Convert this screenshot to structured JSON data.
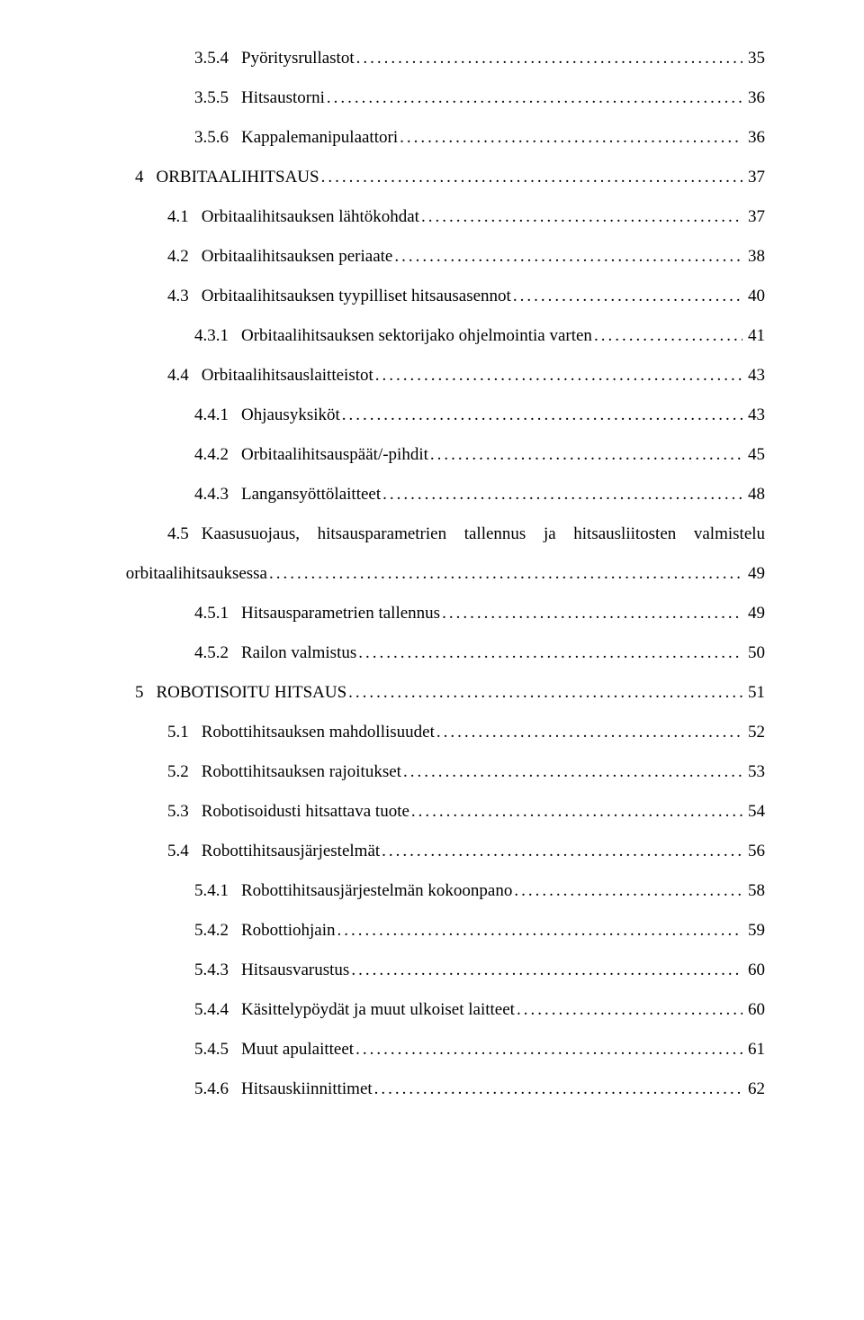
{
  "fontFamily": "Times New Roman",
  "fontSizePt": 14,
  "textColor": "#000000",
  "backgroundColor": "#ffffff",
  "items": [
    {
      "level": 3,
      "num": "3.5.4",
      "title": "Pyöritysrullastot",
      "page": "35"
    },
    {
      "level": 3,
      "num": "3.5.5",
      "title": "Hitsaustorni",
      "page": "36"
    },
    {
      "level": 3,
      "num": "3.5.6",
      "title": "Kappalemanipulaattori",
      "page": "36"
    },
    {
      "level": 0,
      "num": "4",
      "title": "ORBITAALIHITSAUS",
      "page": "37"
    },
    {
      "level": 1,
      "num": "4.1",
      "title": "Orbitaalihitsauksen lähtökohdat",
      "page": "37"
    },
    {
      "level": 1,
      "num": "4.2",
      "title": "Orbitaalihitsauksen periaate",
      "page": "38"
    },
    {
      "level": 1,
      "num": "4.3",
      "title": "Orbitaalihitsauksen tyypilliset hitsausasennot",
      "page": "40"
    },
    {
      "level": 3,
      "num": "4.3.1",
      "title": "Orbitaalihitsauksen sektorijako ohjelmointia varten",
      "page": "41"
    },
    {
      "level": 1,
      "num": "4.4",
      "title": "Orbitaalihitsauslaitteistot",
      "page": "43"
    },
    {
      "level": 3,
      "num": "4.4.1",
      "title": "Ohjausyksiköt",
      "page": "43"
    },
    {
      "level": 3,
      "num": "4.4.2",
      "title": "Orbitaalihitsauspäät/-pihdit",
      "page": "45"
    },
    {
      "level": 3,
      "num": "4.4.3",
      "title": "Langansyöttölaitteet",
      "page": "48"
    },
    {
      "level": 1,
      "num": "4.5",
      "titleWords": [
        "Kaasusuojaus,",
        "hitsausparametrien",
        "tallennus",
        "ja",
        "hitsausliitosten",
        "valmistelu"
      ],
      "title2": "orbitaalihitsauksessa",
      "page": "49",
      "wrap": true
    },
    {
      "level": 3,
      "num": "4.5.1",
      "title": "Hitsausparametrien tallennus",
      "page": "49"
    },
    {
      "level": 3,
      "num": "4.5.2",
      "title": "Railon valmistus",
      "page": "50"
    },
    {
      "level": 0,
      "num": "5",
      "title": "ROBOTISOITU HITSAUS",
      "page": "51"
    },
    {
      "level": 1,
      "num": "5.1",
      "title": "Robottihitsauksen mahdollisuudet",
      "page": "52"
    },
    {
      "level": 1,
      "num": "5.2",
      "title": "Robottihitsauksen rajoitukset",
      "page": "53"
    },
    {
      "level": 1,
      "num": "5.3",
      "title": "Robotisoidusti hitsattava tuote",
      "page": "54"
    },
    {
      "level": 1,
      "num": "5.4",
      "title": "Robottihitsausjärjestelmät",
      "page": "56"
    },
    {
      "level": 3,
      "num": "5.4.1",
      "title": "Robottihitsausjärjestelmän kokoonpano",
      "page": "58"
    },
    {
      "level": 3,
      "num": "5.4.2",
      "title": "Robottiohjain",
      "page": "59"
    },
    {
      "level": 3,
      "num": "5.4.3",
      "title": "Hitsausvarustus",
      "page": "60"
    },
    {
      "level": 3,
      "num": "5.4.4",
      "title": "Käsittelypöydät ja muut ulkoiset laitteet",
      "page": "60"
    },
    {
      "level": 3,
      "num": "5.4.5",
      "title": "Muut apulaitteet",
      "page": "61"
    },
    {
      "level": 3,
      "num": "5.4.6",
      "title": "Hitsauskiinnittimet",
      "page": "62"
    }
  ]
}
